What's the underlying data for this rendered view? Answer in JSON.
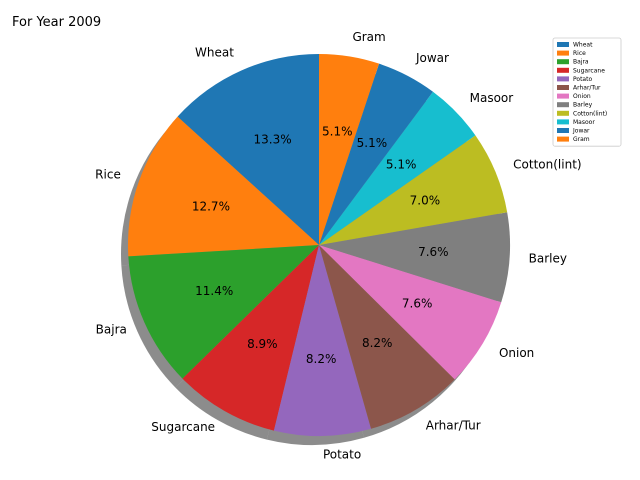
{
  "chart_data": {
    "type": "pie",
    "title": "For Year 2009",
    "categories": [
      "Wheat",
      "Rice",
      "Bajra",
      "Sugarcane",
      "Potato",
      "Arhar/Tur",
      "Onion",
      "Barley",
      "Cotton(lint)",
      "Masoor",
      "Jowar",
      "Gram"
    ],
    "values": [
      13.3,
      12.7,
      11.4,
      8.9,
      8.2,
      8.2,
      7.6,
      7.6,
      7.0,
      5.1,
      5.1,
      5.1
    ],
    "value_labels": [
      "13.3%",
      "12.7%",
      "11.4%",
      "8.9%",
      "8.2%",
      "8.2%",
      "7.6%",
      "7.6%",
      "7.0%",
      "5.1%",
      "5.1%",
      "5.1%"
    ],
    "colors": [
      "#1f77b4",
      "#ff7f0e",
      "#2ca02c",
      "#d62728",
      "#9467bd",
      "#8c564b",
      "#e377c2",
      "#7f7f7f",
      "#bcbd22",
      "#17becf",
      "#1f77b4",
      "#ff7f0e"
    ],
    "start_angle_deg": 90,
    "direction": "counterclockwise",
    "shadow": true,
    "legend_position": "top-right"
  }
}
